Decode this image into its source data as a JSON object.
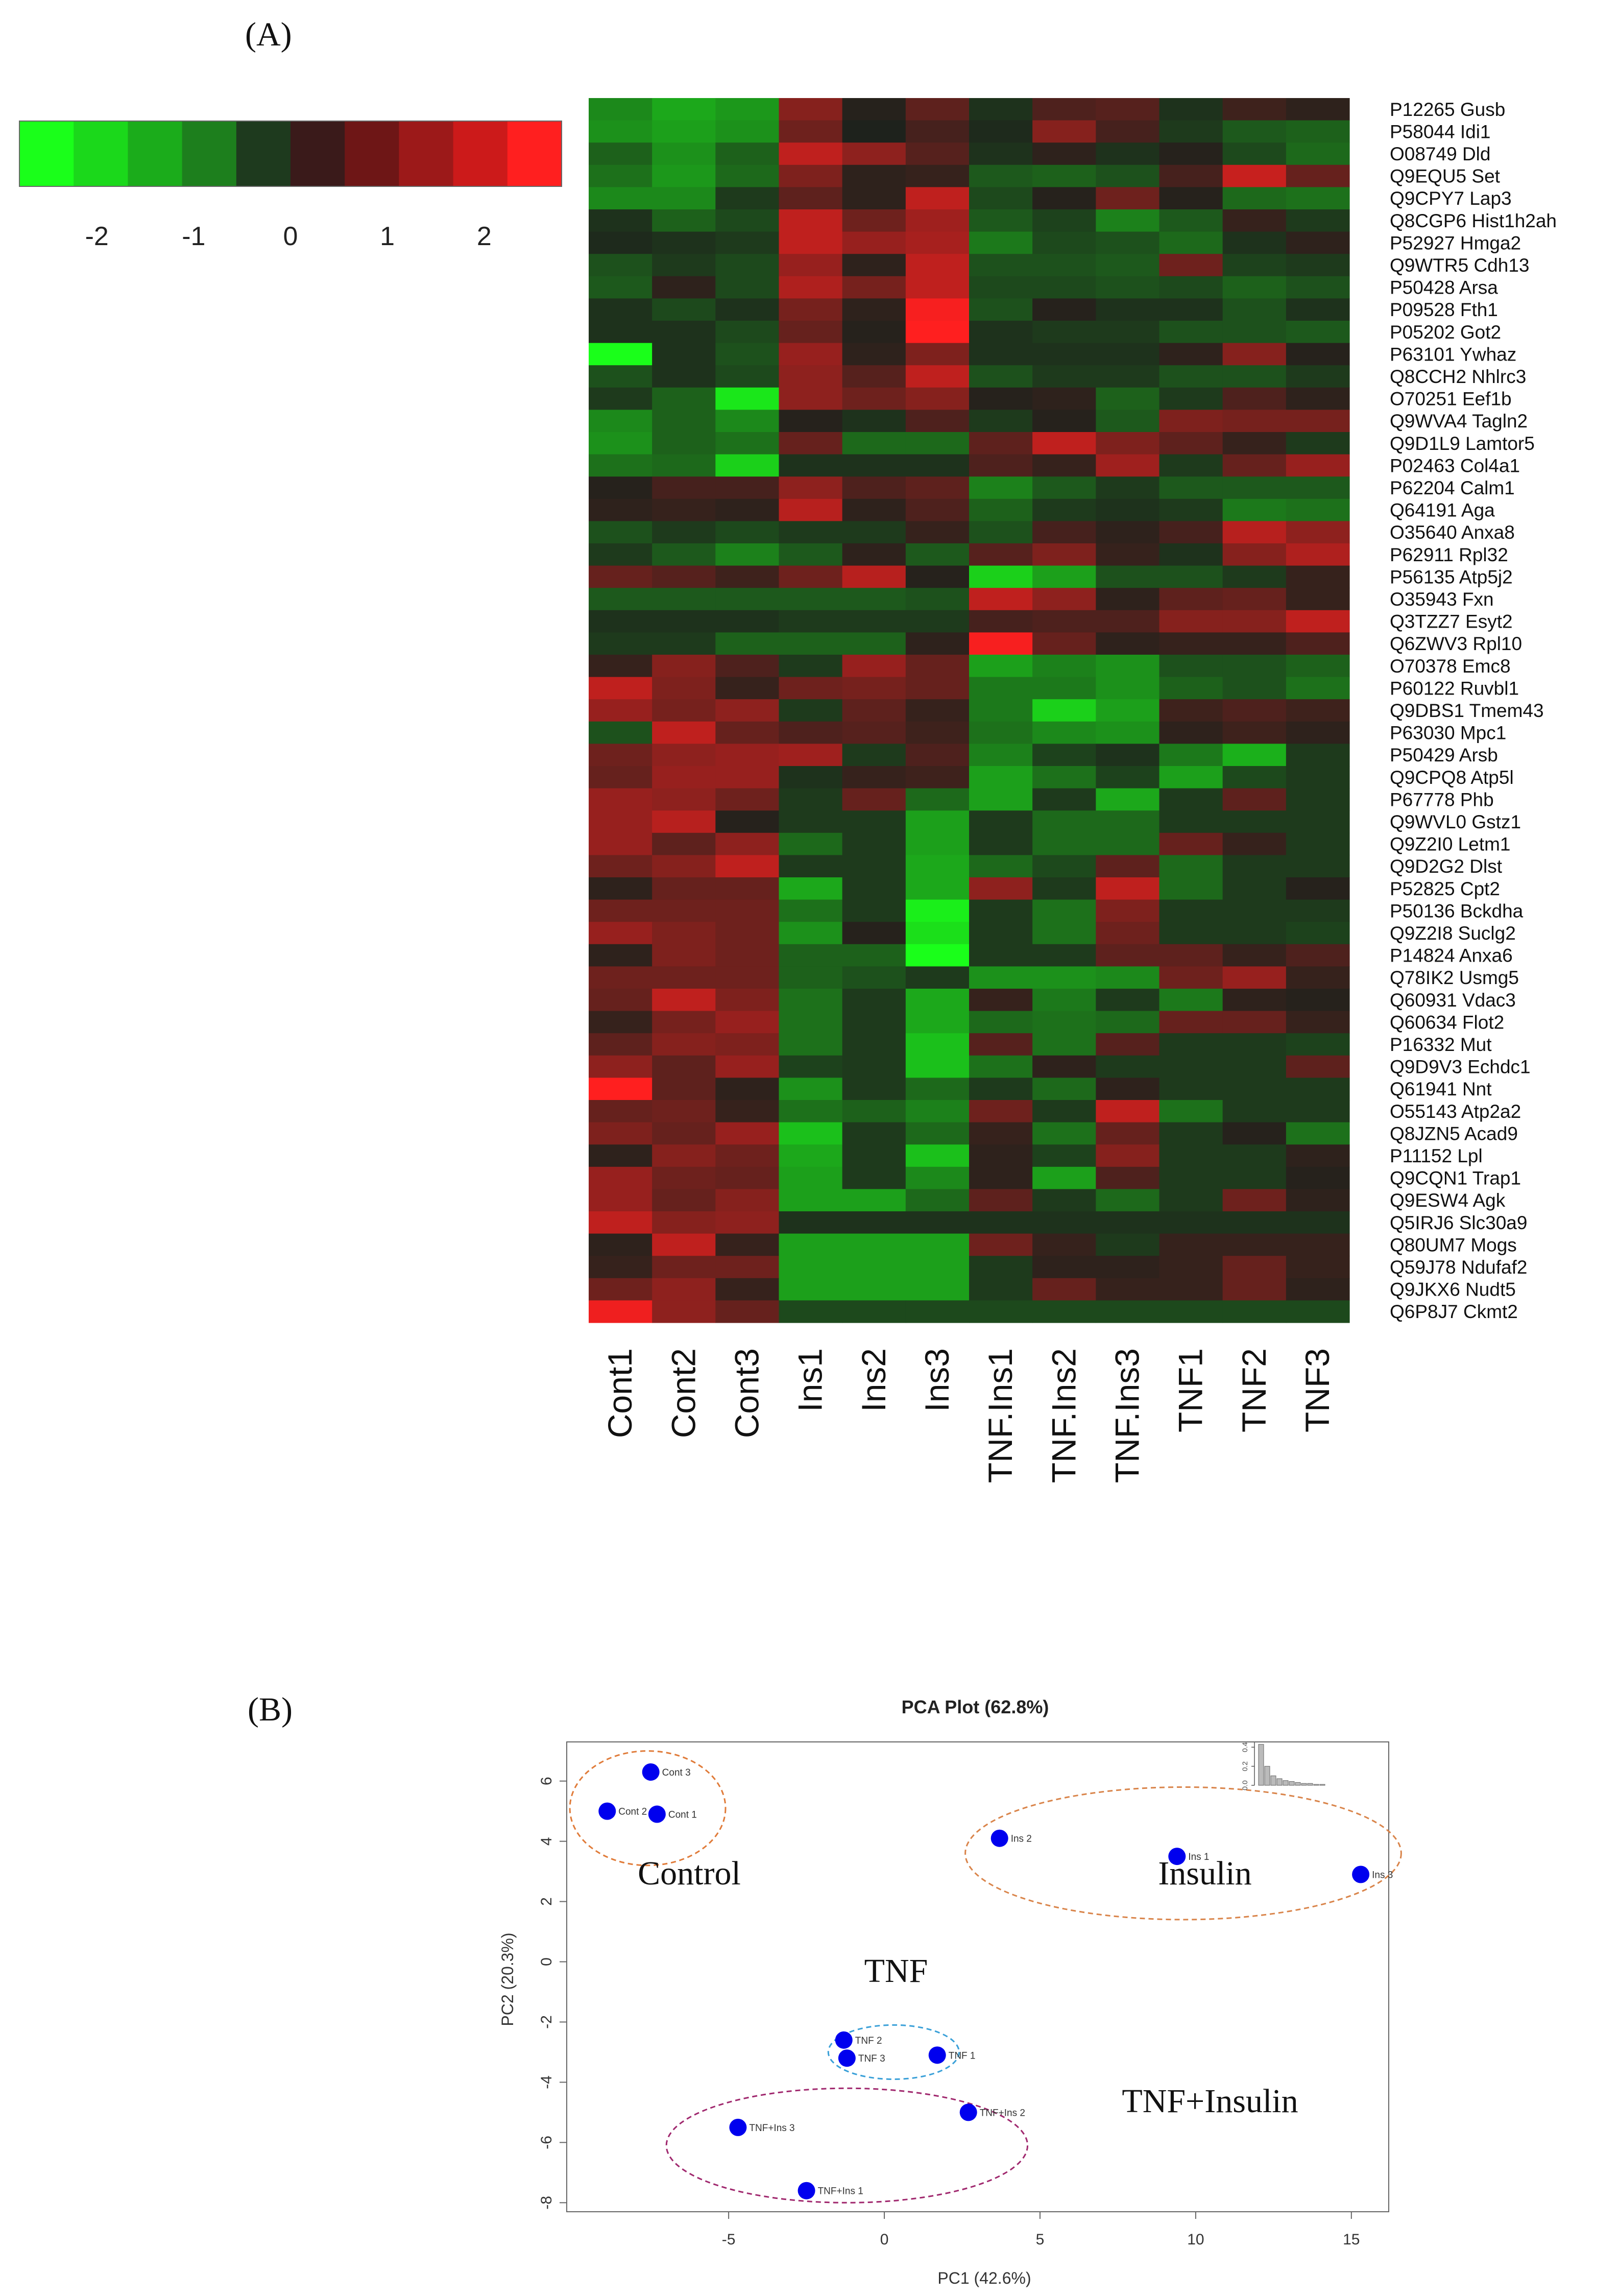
{
  "panel_a_label": "(A)",
  "panel_b_label": "(B)",
  "chart_data": [
    {
      "type": "heatmap",
      "colorbar": {
        "ticks": [
          -2,
          -1,
          0,
          1,
          2
        ],
        "tick_labels": [
          "-2",
          "-1",
          "0",
          "1",
          "2"
        ],
        "range": [
          -2.8,
          2.8
        ],
        "colors": [
          "#1aff1a",
          "#1bd81b",
          "#1bac1b",
          "#1d7f1d",
          "#1e3a1e",
          "#3a1a1a",
          "#6e1616",
          "#9c1919",
          "#cc1a1a",
          "#ff1f1f"
        ]
      },
      "columns": [
        "Cont1",
        "Cont2",
        "Cont3",
        "Ins1",
        "Ins2",
        "Ins3",
        "TNF.Ins1",
        "TNF.Ins2",
        "TNF.Ins3",
        "TNF1",
        "TNF2",
        "TNF3"
      ],
      "rows": [
        "P12265 Gusb",
        "P58044 Idi1",
        "O08749 Dld",
        "Q9EQU5 Set",
        "Q9CPY7 Lap3",
        "Q8CGP6 Hist1h2ah",
        "P52927 Hmga2",
        "Q9WTR5 Cdh13",
        "P50428 Arsa",
        "P09528 Fth1",
        "P05202 Got2",
        "P63101 Ywhaz",
        "Q8CCH2 Nhlrc3",
        "O70251 Eef1b",
        "Q9WVA4 Tagln2",
        "Q9D1L9 Lamtor5",
        "P02463 Col4a1",
        "P62204 Calm1",
        "Q64191 Aga",
        "O35640 Anxa8",
        "P62911 Rpl32",
        "P56135 Atp5j2",
        "O35943 Fxn",
        "Q3TZZ7 Esyt2",
        "Q6ZWV3 Rpl10",
        "O70378 Emc8",
        "P60122 Ruvbl1",
        "Q9DBS1 Tmem43",
        "P63030 Mpc1",
        "P50429 Arsb",
        "Q9CPQ8 Atp5l",
        "P67778 Phb",
        "Q9WVL0 Gstz1",
        "Q9Z2I0 Letm1",
        "Q9D2G2 Dlst",
        "P52825 Cpt2",
        "P50136 Bckdha",
        "Q9Z2I8 Suclg2",
        "P14824 Anxa6",
        "Q78IK2 Usmg5",
        "Q60931 Vdac3",
        "Q60634 Flot2",
        "P16332 Mut",
        "Q9D9V3 Echdc1",
        "Q61941 Nnt",
        "O55143 Atp2a2",
        "Q8JZN5 Acad9",
        "P11152 Lpl",
        "Q9CQN1 Trap1",
        "Q9ESW4 Agk",
        "Q5IRJ6 Slc30a9",
        "Q80UM7 Mogs",
        "Q59J78 Ndufaf2",
        "Q9JKX6 Nudt5",
        "Q6P8J7 Ckmt2"
      ],
      "values": [
        [
          -1.3,
          -1.7,
          -1.5,
          1.3,
          0.1,
          0.8,
          -0.2,
          0.6,
          0.7,
          -0.2,
          0.4,
          0.2
        ],
        [
          -1.4,
          -1.6,
          -1.4,
          1.0,
          0.0,
          0.5,
          -0.1,
          1.3,
          0.5,
          -0.3,
          -0.7,
          -0.8
        ],
        [
          -0.8,
          -1.4,
          -0.8,
          2.0,
          1.4,
          0.7,
          -0.2,
          0.2,
          -0.2,
          0.1,
          -0.5,
          -0.9
        ],
        [
          -1.0,
          -1.5,
          -0.9,
          1.2,
          0.2,
          0.3,
          -0.7,
          -0.8,
          -0.6,
          0.5,
          2.1,
          0.9
        ],
        [
          -1.3,
          -1.3,
          -0.3,
          0.8,
          0.2,
          2.0,
          -0.5,
          0.1,
          1.0,
          0.1,
          -0.9,
          -1.0
        ],
        [
          -0.2,
          -0.8,
          -0.5,
          2.0,
          1.0,
          1.6,
          -0.7,
          -0.4,
          -1.2,
          -0.7,
          0.3,
          -0.3
        ],
        [
          -0.1,
          -0.2,
          -0.3,
          2.0,
          1.5,
          1.7,
          -1.1,
          -0.5,
          -0.6,
          -0.9,
          -0.2,
          0.2
        ],
        [
          -0.6,
          -0.3,
          -0.5,
          1.5,
          0.2,
          2.0,
          -0.6,
          -0.6,
          -0.7,
          1.0,
          -0.4,
          -0.3
        ],
        [
          -0.7,
          0.2,
          -0.5,
          1.8,
          1.1,
          2.0,
          -0.5,
          -0.5,
          -0.6,
          -0.5,
          -0.8,
          -0.6
        ],
        [
          -0.2,
          -0.5,
          -0.2,
          1.1,
          0.2,
          2.7,
          -0.6,
          0.1,
          -0.2,
          -0.2,
          -0.6,
          -0.2
        ],
        [
          -0.2,
          -0.2,
          -0.5,
          0.9,
          0.1,
          2.8,
          -0.2,
          -0.3,
          -0.3,
          -0.6,
          -0.6,
          -0.7
        ],
        [
          -2.8,
          -0.2,
          -0.6,
          1.5,
          0.2,
          1.2,
          -0.2,
          -0.2,
          -0.2,
          0.2,
          1.3,
          0.1
        ],
        [
          -0.6,
          -0.2,
          -0.5,
          1.4,
          0.7,
          2.0,
          -0.6,
          -0.3,
          -0.3,
          -0.6,
          -0.6,
          -0.3
        ],
        [
          -0.3,
          -0.8,
          -2.5,
          1.4,
          1.0,
          1.3,
          0.1,
          0.2,
          -0.8,
          -0.3,
          0.6,
          0.2
        ],
        [
          -1.3,
          -0.8,
          -1.3,
          0.1,
          -0.2,
          0.6,
          -0.3,
          0.1,
          -0.7,
          1.2,
          1.1,
          1.1
        ],
        [
          -1.4,
          -0.8,
          -1.0,
          0.9,
          -0.9,
          -0.9,
          0.8,
          2.0,
          1.2,
          0.8,
          0.3,
          -0.3
        ],
        [
          -1.0,
          -0.9,
          -2.2,
          -0.2,
          -0.2,
          -0.2,
          0.6,
          0.3,
          1.6,
          -0.3,
          0.9,
          1.5
        ],
        [
          0.1,
          0.5,
          0.5,
          1.4,
          0.6,
          0.8,
          -1.2,
          -0.7,
          -0.3,
          -0.7,
          -0.7,
          -0.7
        ],
        [
          0.2,
          0.3,
          0.2,
          1.9,
          0.2,
          0.6,
          -0.8,
          -0.3,
          -0.2,
          -0.3,
          -1.1,
          -1.0
        ],
        [
          -0.6,
          -0.3,
          -0.5,
          -0.3,
          -0.3,
          0.3,
          -0.6,
          0.5,
          0.2,
          0.5,
          1.9,
          1.4
        ],
        [
          -0.3,
          -0.7,
          -1.2,
          -0.7,
          0.2,
          -0.7,
          0.7,
          1.2,
          0.3,
          -0.2,
          1.3,
          1.8
        ],
        [
          0.9,
          0.7,
          0.4,
          1.0,
          1.9,
          0.1,
          -2.2,
          -1.6,
          -0.6,
          -0.6,
          -0.3,
          0.3
        ],
        [
          -0.7,
          -0.7,
          -0.7,
          -0.7,
          -0.7,
          -0.6,
          2.0,
          1.4,
          0.2,
          0.8,
          0.9,
          0.3
        ],
        [
          -0.2,
          -0.2,
          -0.2,
          -0.3,
          -0.3,
          -0.3,
          0.5,
          0.6,
          0.6,
          1.3,
          1.3,
          2.0
        ],
        [
          -0.3,
          -0.3,
          -0.8,
          -0.8,
          -0.8,
          0.2,
          2.7,
          0.9,
          0.2,
          0.3,
          0.3,
          0.6
        ],
        [
          0.3,
          1.3,
          0.6,
          -0.3,
          1.5,
          0.9,
          -1.6,
          -1.2,
          -1.4,
          -0.6,
          -0.6,
          -0.8
        ],
        [
          2.0,
          1.2,
          0.3,
          1.0,
          1.1,
          0.9,
          -1.1,
          -1.1,
          -1.4,
          -0.8,
          -0.6,
          -1.0
        ],
        [
          1.5,
          1.1,
          1.4,
          -0.3,
          0.8,
          0.3,
          -1.1,
          -2.2,
          -1.6,
          0.4,
          0.6,
          0.4
        ],
        [
          -0.6,
          2.0,
          0.9,
          0.6,
          0.7,
          0.4,
          -1.0,
          -1.3,
          -1.4,
          0.2,
          0.4,
          0.2
        ],
        [
          1.0,
          1.4,
          1.5,
          1.6,
          -0.3,
          0.6,
          -1.2,
          -0.4,
          -0.2,
          -1.1,
          -1.8,
          -0.3
        ],
        [
          0.9,
          1.5,
          1.5,
          -0.2,
          0.3,
          0.4,
          -1.6,
          -1.0,
          -0.4,
          -1.6,
          -0.5,
          -0.3
        ],
        [
          1.5,
          1.4,
          1.0,
          -0.3,
          0.9,
          -0.9,
          -1.6,
          -0.3,
          -1.7,
          -0.3,
          0.8,
          -0.3
        ],
        [
          1.5,
          1.9,
          0.1,
          -0.3,
          -0.3,
          -1.6,
          -0.3,
          -0.9,
          -0.9,
          -0.3,
          -0.3,
          -0.3
        ],
        [
          1.5,
          0.8,
          1.4,
          -0.9,
          -0.3,
          -1.6,
          -0.3,
          -0.9,
          -0.9,
          0.9,
          0.3,
          -0.3
        ],
        [
          1.0,
          1.3,
          2.0,
          -0.3,
          -0.3,
          -1.7,
          -0.9,
          -0.5,
          0.8,
          -0.9,
          -0.3,
          -0.3
        ],
        [
          0.2,
          0.9,
          0.9,
          -1.7,
          -0.3,
          -1.7,
          1.4,
          -0.3,
          2.0,
          -0.9,
          -0.3,
          0.1
        ],
        [
          1.0,
          1.0,
          1.0,
          -1.0,
          -0.3,
          -2.6,
          -0.3,
          -1.0,
          1.2,
          -0.3,
          -0.3,
          -0.3
        ],
        [
          1.5,
          1.2,
          1.0,
          -1.4,
          0.1,
          -2.4,
          -0.3,
          -1.0,
          1.0,
          -0.3,
          -0.3,
          -0.4
        ],
        [
          0.2,
          1.2,
          1.0,
          -0.8,
          -0.8,
          -2.8,
          -0.3,
          -0.3,
          0.8,
          0.8,
          0.3,
          0.6
        ],
        [
          1.0,
          1.0,
          1.0,
          -0.8,
          -0.6,
          -0.3,
          -1.4,
          -1.4,
          -1.3,
          1.0,
          1.5,
          0.3
        ],
        [
          0.9,
          2.0,
          1.2,
          -1.0,
          -0.3,
          -1.7,
          0.3,
          -1.1,
          -0.3,
          -1.1,
          0.2,
          0.1
        ],
        [
          0.3,
          1.1,
          1.5,
          -1.0,
          -0.3,
          -1.7,
          -0.9,
          -1.0,
          -0.9,
          0.9,
          0.9,
          0.3
        ],
        [
          0.8,
          1.3,
          1.2,
          -1.0,
          -0.3,
          -2.0,
          0.7,
          -1.0,
          0.7,
          -0.3,
          -0.3,
          -0.4
        ],
        [
          1.4,
          0.8,
          1.5,
          -0.4,
          -0.3,
          -2.0,
          -1.0,
          0.2,
          -0.3,
          -0.3,
          -0.3,
          0.8
        ],
        [
          2.8,
          0.8,
          0.2,
          -1.4,
          -0.3,
          -0.9,
          -0.3,
          -0.9,
          0.2,
          -0.3,
          -0.3,
          -0.3
        ],
        [
          0.9,
          1.0,
          0.3,
          -1.0,
          -0.8,
          -1.2,
          1.0,
          -0.3,
          2.0,
          -1.0,
          -0.3,
          -0.3
        ],
        [
          1.2,
          0.9,
          1.5,
          -2.0,
          -0.3,
          -0.9,
          0.3,
          -1.0,
          0.9,
          -0.3,
          0.1,
          -1.0
        ],
        [
          0.2,
          1.3,
          1.0,
          -1.7,
          -0.3,
          -2.0,
          0.2,
          -0.4,
          1.3,
          -0.3,
          -0.3,
          0.2
        ],
        [
          1.5,
          1.0,
          0.9,
          -1.6,
          -0.3,
          -1.3,
          0.2,
          -1.6,
          0.6,
          -0.3,
          -0.3,
          0.1
        ],
        [
          1.5,
          0.9,
          1.3,
          -1.6,
          -1.6,
          -0.9,
          0.8,
          -0.3,
          -0.9,
          -0.3,
          1.0,
          0.2
        ],
        [
          2.0,
          1.3,
          1.4,
          -0.2,
          -0.2,
          -0.2,
          -0.2,
          -0.2,
          -0.2,
          -0.2,
          -0.2,
          -0.2
        ],
        [
          0.2,
          2.0,
          0.3,
          -1.6,
          -1.6,
          -1.6,
          1.0,
          0.3,
          -0.3,
          0.3,
          0.3,
          0.3
        ],
        [
          0.3,
          1.0,
          1.0,
          -1.6,
          -1.6,
          -1.6,
          -0.3,
          0.2,
          0.2,
          0.3,
          0.9,
          0.3
        ],
        [
          1.0,
          1.4,
          0.3,
          -1.6,
          -1.6,
          -1.6,
          -0.3,
          0.9,
          0.3,
          0.3,
          0.9,
          0.2
        ],
        [
          2.6,
          1.4,
          0.9,
          -0.5,
          -0.5,
          -0.5,
          -0.5,
          -0.5,
          -0.5,
          -0.5,
          -0.5,
          -0.5
        ]
      ]
    },
    {
      "type": "scatter",
      "title": "PCA Plot (62.8%)",
      "xlabel": "PC1 (42.6%)",
      "ylabel": "PC2 (20.3%)",
      "xlim": [
        -10.2,
        16.2
      ],
      "ylim": [
        -8.3,
        7.3
      ],
      "xticks": [
        -5,
        0,
        5,
        10,
        15
      ],
      "yticks": [
        -8,
        -6,
        -4,
        -2,
        0,
        2,
        4,
        6
      ],
      "point_color": "#0000ee",
      "points": [
        {
          "label": "Cont 3",
          "x": -7.5,
          "y": 6.3
        },
        {
          "label": "Cont 2",
          "x": -8.9,
          "y": 5.0
        },
        {
          "label": "Cont 1",
          "x": -7.3,
          "y": 4.9
        },
        {
          "label": "Ins 2",
          "x": 3.7,
          "y": 4.1
        },
        {
          "label": "Ins 1",
          "x": 9.4,
          "y": 3.5
        },
        {
          "label": "Ins 3",
          "x": 15.3,
          "y": 2.9
        },
        {
          "label": "TNF 2",
          "x": -1.3,
          "y": -2.6
        },
        {
          "label": "TNF 3",
          "x": -1.2,
          "y": -3.2
        },
        {
          "label": "TNF 1",
          "x": 1.7,
          "y": -3.1
        },
        {
          "label": "TNF+Ins 2",
          "x": 2.7,
          "y": -5.0
        },
        {
          "label": "TNF+Ins 3",
          "x": -4.7,
          "y": -5.5
        },
        {
          "label": "TNF+Ins 1",
          "x": -2.5,
          "y": -7.6
        }
      ],
      "groups": [
        {
          "name": "Control",
          "color": "#e07b39",
          "cx": -7.6,
          "cy": 5.1,
          "rx": 2.5,
          "ry": 1.9
        },
        {
          "name": "Insulin",
          "color": "#d9844a",
          "cx": 9.6,
          "cy": 3.6,
          "rx": 7.0,
          "ry": 2.2
        },
        {
          "name": "TNF",
          "color": "#3aa0d8",
          "cx": 0.3,
          "cy": -3.0,
          "rx": 2.1,
          "ry": 0.9
        },
        {
          "name": "TNF+Insulin",
          "color": "#a0286e",
          "cx": -1.2,
          "cy": -6.1,
          "rx": 5.8,
          "ry": 1.9
        }
      ],
      "group_labels": [
        "Control",
        "Insulin",
        "TNF",
        "TNF+Insulin"
      ],
      "inset": {
        "values": [
          0.43,
          0.2,
          0.1,
          0.07,
          0.05,
          0.04,
          0.03,
          0.02,
          0.02,
          0.01,
          0.01,
          0.0
        ],
        "yticks": [
          "0.0",
          "0.2",
          "0.4"
        ]
      }
    }
  ]
}
